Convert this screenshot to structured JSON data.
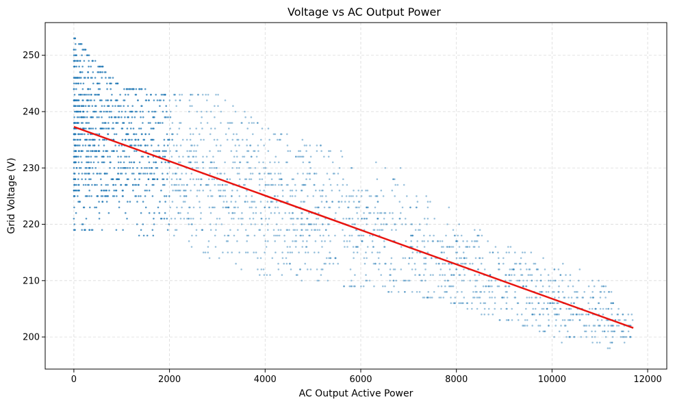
{
  "chart_data": {
    "type": "scatter",
    "title": "Voltage vs AC Output Power",
    "xlabel": "AC Output Active Power",
    "ylabel": "Grid Voltage (V)",
    "xlim": [
      -600,
      12400
    ],
    "ylim": [
      194.3,
      255.8
    ],
    "x_ticks": [
      0,
      2000,
      4000,
      6000,
      8000,
      10000,
      12000
    ],
    "y_ticks": [
      200,
      210,
      220,
      230,
      240,
      250
    ],
    "grid": true,
    "grid_style": "dashed",
    "colors": {
      "points": "#1f77b4",
      "trend": "#e8140f",
      "grid": "#d9d9d9"
    },
    "trendline": {
      "x": [
        0,
        11700
      ],
      "y": [
        237.3,
        201.6
      ]
    },
    "scatter_envelope": [
      {
        "x": 0,
        "y_min": 219,
        "y_max": 253
      },
      {
        "x": 1000,
        "y_min": 219,
        "y_max": 244
      },
      {
        "x": 2000,
        "y_min": 217,
        "y_max": 243
      },
      {
        "x": 3000,
        "y_min": 214,
        "y_max": 243
      },
      {
        "x": 4000,
        "y_min": 211,
        "y_max": 237
      },
      {
        "x": 5000,
        "y_min": 210,
        "y_max": 234
      },
      {
        "x": 6000,
        "y_min": 209,
        "y_max": 232
      },
      {
        "x": 7000,
        "y_min": 208,
        "y_max": 229
      },
      {
        "x": 8000,
        "y_min": 206,
        "y_max": 222
      },
      {
        "x": 9000,
        "y_min": 203,
        "y_max": 216
      },
      {
        "x": 10000,
        "y_min": 200,
        "y_max": 214
      },
      {
        "x": 11000,
        "y_min": 197,
        "y_max": 210
      },
      {
        "x": 11700,
        "y_min": 200,
        "y_max": 204
      }
    ]
  }
}
